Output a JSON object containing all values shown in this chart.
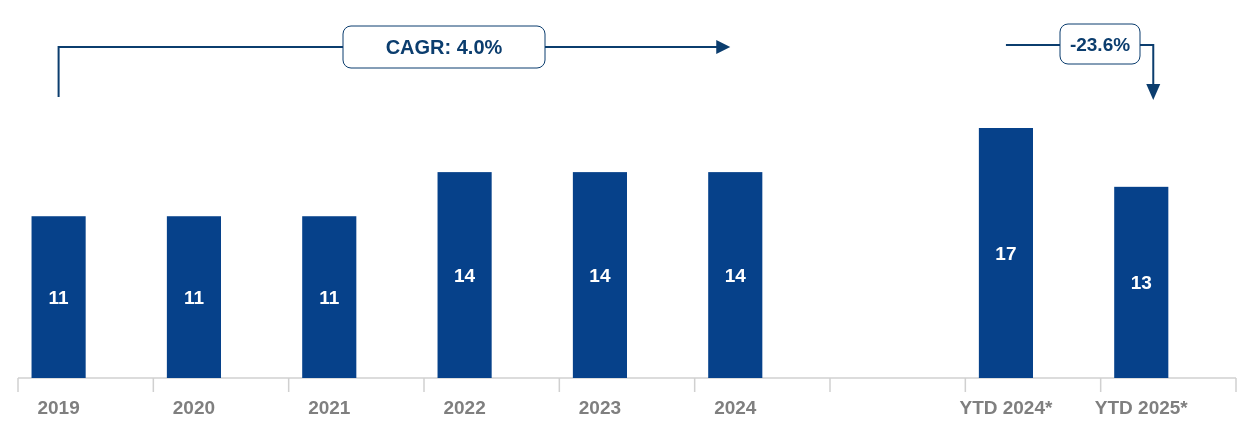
{
  "chart_data": {
    "type": "bar",
    "categories": [
      "2019",
      "2020",
      "2021",
      "2022",
      "2023",
      "2024",
      null,
      "YTD 2024*",
      "YTD 2025*"
    ],
    "values": [
      11,
      11,
      11,
      14,
      14,
      14,
      null,
      17,
      13
    ],
    "color": "#06418a",
    "data_labels": true,
    "annotations": [
      "CAGR: 4.0%",
      "-23.6%"
    ]
  }
}
